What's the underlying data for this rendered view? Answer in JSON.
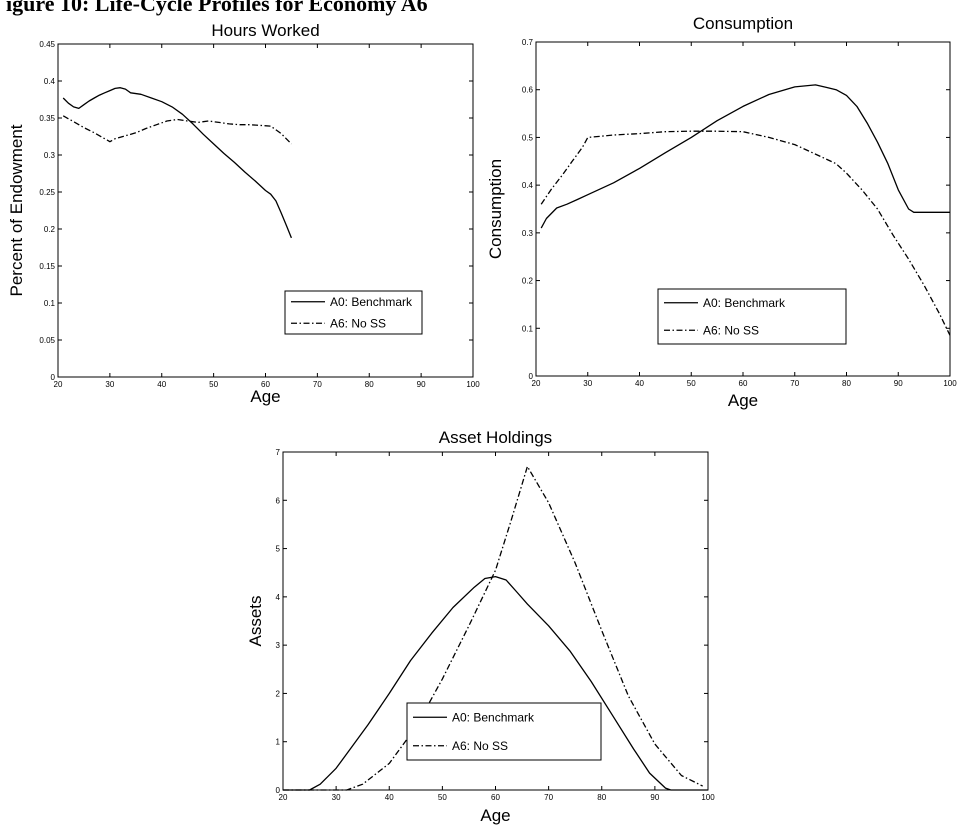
{
  "page_title": "igure 10: Life-Cycle Profiles for Economy A6",
  "chart_data": [
    {
      "type": "line",
      "title": "Hours Worked",
      "xlabel": "Age",
      "ylabel": "Percent of Endowment",
      "xlim": [
        20,
        100
      ],
      "ylim": [
        0,
        0.45
      ],
      "xticks": [
        20,
        30,
        40,
        50,
        60,
        70,
        80,
        90,
        100
      ],
      "yticks": [
        0,
        0.05,
        0.1,
        0.15,
        0.2,
        0.25,
        0.3,
        0.35,
        0.4,
        0.45
      ],
      "grid": false,
      "legend_position": "bottom-right",
      "series": [
        {
          "name": "A0: Benchmark",
          "style": "solid",
          "x": [
            21,
            22,
            23,
            24,
            25,
            26,
            27,
            28,
            29,
            30,
            31,
            32,
            33,
            34,
            36,
            38,
            40,
            42,
            44,
            46,
            48,
            50,
            52,
            54,
            56,
            58,
            60,
            61,
            62,
            63,
            64,
            65
          ],
          "y": [
            0.377,
            0.37,
            0.365,
            0.363,
            0.368,
            0.373,
            0.377,
            0.381,
            0.384,
            0.387,
            0.39,
            0.391,
            0.389,
            0.384,
            0.382,
            0.377,
            0.372,
            0.365,
            0.355,
            0.342,
            0.328,
            0.315,
            0.302,
            0.29,
            0.277,
            0.265,
            0.252,
            0.247,
            0.238,
            0.222,
            0.205,
            0.188
          ]
        },
        {
          "name": "A6: No SS",
          "style": "dashdot",
          "x": [
            21,
            23,
            25,
            27,
            29,
            30,
            31,
            33,
            35,
            37,
            39,
            41,
            43,
            45,
            47,
            49,
            51,
            53,
            55,
            57,
            59,
            61,
            63,
            65
          ],
          "y": [
            0.353,
            0.345,
            0.337,
            0.33,
            0.322,
            0.318,
            0.322,
            0.326,
            0.33,
            0.336,
            0.341,
            0.346,
            0.348,
            0.346,
            0.344,
            0.346,
            0.344,
            0.342,
            0.341,
            0.341,
            0.34,
            0.339,
            0.329,
            0.315
          ]
        }
      ]
    },
    {
      "type": "line",
      "title": "Consumption",
      "xlabel": "Age",
      "ylabel": "Consumption",
      "xlim": [
        20,
        100
      ],
      "ylim": [
        0,
        0.7
      ],
      "xticks": [
        20,
        30,
        40,
        50,
        60,
        70,
        80,
        90,
        100
      ],
      "yticks": [
        0,
        0.1,
        0.2,
        0.3,
        0.4,
        0.5,
        0.6,
        0.7
      ],
      "grid": false,
      "legend_position": "bottom-right",
      "series": [
        {
          "name": "A0: Benchmark",
          "style": "solid",
          "x": [
            21,
            22,
            24,
            26,
            28,
            30,
            35,
            40,
            45,
            50,
            55,
            60,
            65,
            70,
            74,
            76,
            78,
            80,
            82,
            84,
            86,
            88,
            90,
            92,
            93,
            95,
            97,
            100
          ],
          "y": [
            0.31,
            0.33,
            0.352,
            0.36,
            0.37,
            0.38,
            0.405,
            0.435,
            0.468,
            0.5,
            0.535,
            0.565,
            0.59,
            0.606,
            0.61,
            0.605,
            0.6,
            0.588,
            0.565,
            0.53,
            0.49,
            0.445,
            0.39,
            0.35,
            0.343,
            0.343,
            0.343,
            0.343
          ]
        },
        {
          "name": "A6: No SS",
          "style": "dashdot",
          "x": [
            21,
            23,
            25,
            27,
            29,
            30,
            32,
            35,
            40,
            45,
            50,
            55,
            60,
            65,
            70,
            75,
            78,
            80,
            83,
            86,
            89,
            92,
            95,
            98,
            100
          ],
          "y": [
            0.36,
            0.392,
            0.42,
            0.45,
            0.48,
            0.5,
            0.502,
            0.505,
            0.508,
            0.512,
            0.513,
            0.513,
            0.512,
            0.5,
            0.485,
            0.46,
            0.445,
            0.425,
            0.39,
            0.35,
            0.295,
            0.245,
            0.19,
            0.13,
            0.085
          ]
        }
      ]
    },
    {
      "type": "line",
      "title": "Asset Holdings",
      "xlabel": "Age",
      "ylabel": "Assets",
      "xlim": [
        20,
        100
      ],
      "ylim": [
        0,
        7
      ],
      "xticks": [
        20,
        30,
        40,
        50,
        60,
        70,
        80,
        90,
        100
      ],
      "yticks": [
        0,
        1,
        2,
        3,
        4,
        5,
        6,
        7
      ],
      "grid": false,
      "legend_position": "bottom-center",
      "series": [
        {
          "name": "A0: Benchmark",
          "style": "solid",
          "x": [
            20,
            25,
            27,
            30,
            33,
            36,
            40,
            44,
            48,
            52,
            56,
            58,
            60,
            62,
            64,
            66,
            70,
            74,
            78,
            82,
            86,
            89,
            92,
            93,
            95,
            100
          ],
          "y": [
            0,
            0,
            0.12,
            0.45,
            0.9,
            1.35,
            2.0,
            2.68,
            3.25,
            3.78,
            4.2,
            4.38,
            4.42,
            4.35,
            4.1,
            3.85,
            3.4,
            2.88,
            2.25,
            1.55,
            0.85,
            0.35,
            0.04,
            0,
            0,
            0
          ]
        },
        {
          "name": "A6: No SS",
          "style": "dashdot",
          "x": [
            20,
            32,
            35,
            40,
            45,
            50,
            55,
            60,
            63,
            66,
            70,
            75,
            80,
            85,
            90,
            95,
            99
          ],
          "y": [
            0,
            0,
            0.12,
            0.55,
            1.3,
            2.3,
            3.4,
            4.55,
            5.6,
            6.7,
            5.95,
            4.7,
            3.3,
            1.95,
            0.95,
            0.3,
            0.08
          ]
        }
      ]
    }
  ]
}
